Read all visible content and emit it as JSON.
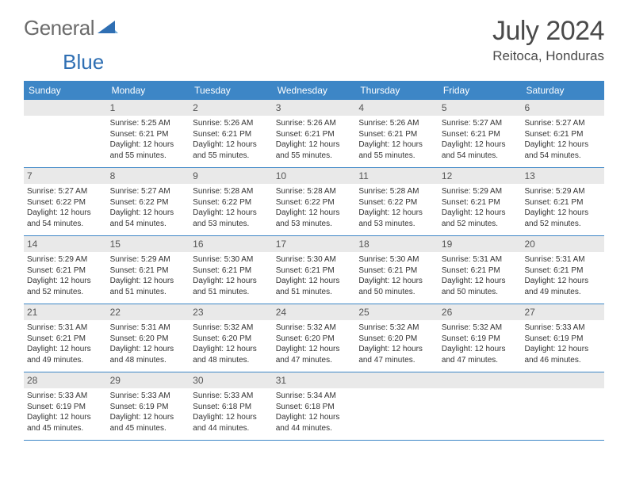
{
  "brand": {
    "part1": "General",
    "part2": "Blue"
  },
  "title": "July 2024",
  "location": "Reitoca, Honduras",
  "colors": {
    "header_bg": "#3d86c6",
    "daynum_bg": "#e9e9e9",
    "text": "#333333",
    "brand_grey": "#6b6b6b",
    "brand_blue": "#2f6fb3"
  },
  "weekdays": [
    "Sunday",
    "Monday",
    "Tuesday",
    "Wednesday",
    "Thursday",
    "Friday",
    "Saturday"
  ],
  "weeks": [
    [
      null,
      {
        "n": "1",
        "sunrise": "5:25 AM",
        "sunset": "6:21 PM",
        "daylight_a": "Daylight: 12 hours",
        "daylight_b": "and 55 minutes."
      },
      {
        "n": "2",
        "sunrise": "5:26 AM",
        "sunset": "6:21 PM",
        "daylight_a": "Daylight: 12 hours",
        "daylight_b": "and 55 minutes."
      },
      {
        "n": "3",
        "sunrise": "5:26 AM",
        "sunset": "6:21 PM",
        "daylight_a": "Daylight: 12 hours",
        "daylight_b": "and 55 minutes."
      },
      {
        "n": "4",
        "sunrise": "5:26 AM",
        "sunset": "6:21 PM",
        "daylight_a": "Daylight: 12 hours",
        "daylight_b": "and 55 minutes."
      },
      {
        "n": "5",
        "sunrise": "5:27 AM",
        "sunset": "6:21 PM",
        "daylight_a": "Daylight: 12 hours",
        "daylight_b": "and 54 minutes."
      },
      {
        "n": "6",
        "sunrise": "5:27 AM",
        "sunset": "6:21 PM",
        "daylight_a": "Daylight: 12 hours",
        "daylight_b": "and 54 minutes."
      }
    ],
    [
      {
        "n": "7",
        "sunrise": "5:27 AM",
        "sunset": "6:22 PM",
        "daylight_a": "Daylight: 12 hours",
        "daylight_b": "and 54 minutes."
      },
      {
        "n": "8",
        "sunrise": "5:27 AM",
        "sunset": "6:22 PM",
        "daylight_a": "Daylight: 12 hours",
        "daylight_b": "and 54 minutes."
      },
      {
        "n": "9",
        "sunrise": "5:28 AM",
        "sunset": "6:22 PM",
        "daylight_a": "Daylight: 12 hours",
        "daylight_b": "and 53 minutes."
      },
      {
        "n": "10",
        "sunrise": "5:28 AM",
        "sunset": "6:22 PM",
        "daylight_a": "Daylight: 12 hours",
        "daylight_b": "and 53 minutes."
      },
      {
        "n": "11",
        "sunrise": "5:28 AM",
        "sunset": "6:22 PM",
        "daylight_a": "Daylight: 12 hours",
        "daylight_b": "and 53 minutes."
      },
      {
        "n": "12",
        "sunrise": "5:29 AM",
        "sunset": "6:21 PM",
        "daylight_a": "Daylight: 12 hours",
        "daylight_b": "and 52 minutes."
      },
      {
        "n": "13",
        "sunrise": "5:29 AM",
        "sunset": "6:21 PM",
        "daylight_a": "Daylight: 12 hours",
        "daylight_b": "and 52 minutes."
      }
    ],
    [
      {
        "n": "14",
        "sunrise": "5:29 AM",
        "sunset": "6:21 PM",
        "daylight_a": "Daylight: 12 hours",
        "daylight_b": "and 52 minutes."
      },
      {
        "n": "15",
        "sunrise": "5:29 AM",
        "sunset": "6:21 PM",
        "daylight_a": "Daylight: 12 hours",
        "daylight_b": "and 51 minutes."
      },
      {
        "n": "16",
        "sunrise": "5:30 AM",
        "sunset": "6:21 PM",
        "daylight_a": "Daylight: 12 hours",
        "daylight_b": "and 51 minutes."
      },
      {
        "n": "17",
        "sunrise": "5:30 AM",
        "sunset": "6:21 PM",
        "daylight_a": "Daylight: 12 hours",
        "daylight_b": "and 51 minutes."
      },
      {
        "n": "18",
        "sunrise": "5:30 AM",
        "sunset": "6:21 PM",
        "daylight_a": "Daylight: 12 hours",
        "daylight_b": "and 50 minutes."
      },
      {
        "n": "19",
        "sunrise": "5:31 AM",
        "sunset": "6:21 PM",
        "daylight_a": "Daylight: 12 hours",
        "daylight_b": "and 50 minutes."
      },
      {
        "n": "20",
        "sunrise": "5:31 AM",
        "sunset": "6:21 PM",
        "daylight_a": "Daylight: 12 hours",
        "daylight_b": "and 49 minutes."
      }
    ],
    [
      {
        "n": "21",
        "sunrise": "5:31 AM",
        "sunset": "6:21 PM",
        "daylight_a": "Daylight: 12 hours",
        "daylight_b": "and 49 minutes."
      },
      {
        "n": "22",
        "sunrise": "5:31 AM",
        "sunset": "6:20 PM",
        "daylight_a": "Daylight: 12 hours",
        "daylight_b": "and 48 minutes."
      },
      {
        "n": "23",
        "sunrise": "5:32 AM",
        "sunset": "6:20 PM",
        "daylight_a": "Daylight: 12 hours",
        "daylight_b": "and 48 minutes."
      },
      {
        "n": "24",
        "sunrise": "5:32 AM",
        "sunset": "6:20 PM",
        "daylight_a": "Daylight: 12 hours",
        "daylight_b": "and 47 minutes."
      },
      {
        "n": "25",
        "sunrise": "5:32 AM",
        "sunset": "6:20 PM",
        "daylight_a": "Daylight: 12 hours",
        "daylight_b": "and 47 minutes."
      },
      {
        "n": "26",
        "sunrise": "5:32 AM",
        "sunset": "6:19 PM",
        "daylight_a": "Daylight: 12 hours",
        "daylight_b": "and 47 minutes."
      },
      {
        "n": "27",
        "sunrise": "5:33 AM",
        "sunset": "6:19 PM",
        "daylight_a": "Daylight: 12 hours",
        "daylight_b": "and 46 minutes."
      }
    ],
    [
      {
        "n": "28",
        "sunrise": "5:33 AM",
        "sunset": "6:19 PM",
        "daylight_a": "Daylight: 12 hours",
        "daylight_b": "and 45 minutes."
      },
      {
        "n": "29",
        "sunrise": "5:33 AM",
        "sunset": "6:19 PM",
        "daylight_a": "Daylight: 12 hours",
        "daylight_b": "and 45 minutes."
      },
      {
        "n": "30",
        "sunrise": "5:33 AM",
        "sunset": "6:18 PM",
        "daylight_a": "Daylight: 12 hours",
        "daylight_b": "and 44 minutes."
      },
      {
        "n": "31",
        "sunrise": "5:34 AM",
        "sunset": "6:18 PM",
        "daylight_a": "Daylight: 12 hours",
        "daylight_b": "and 44 minutes."
      },
      null,
      null,
      null
    ]
  ]
}
